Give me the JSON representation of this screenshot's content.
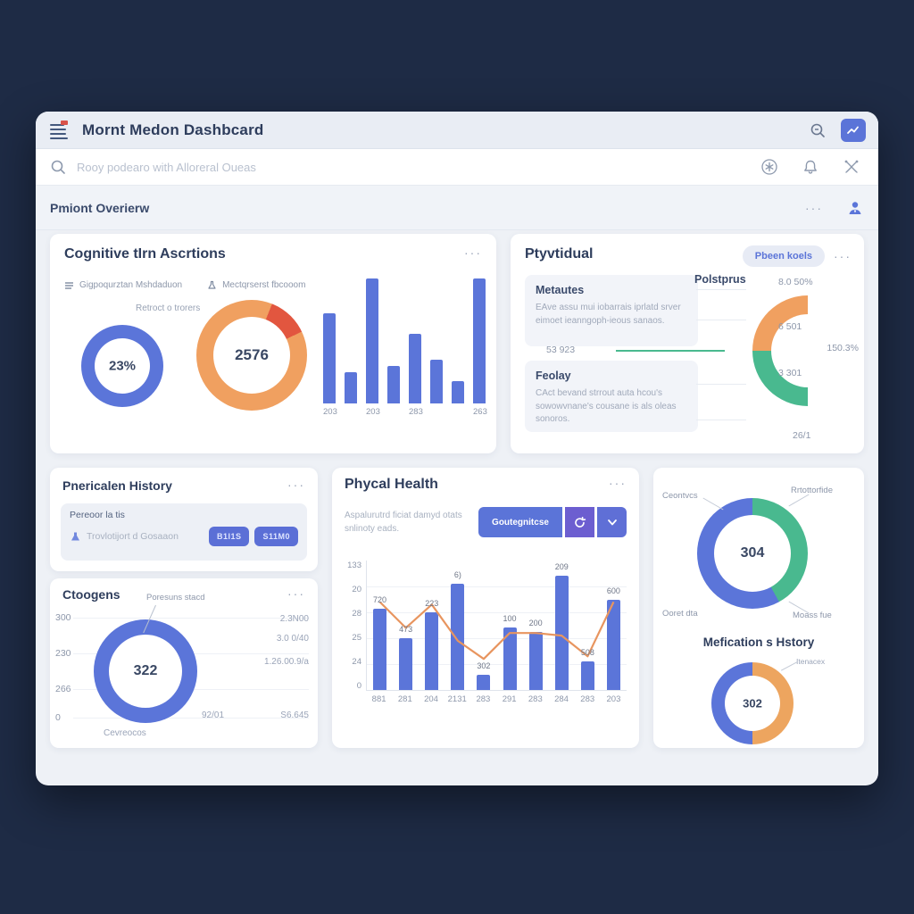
{
  "ui": {
    "ellipsis": "···"
  },
  "header": {
    "title": "Mornt Medon Dashbcard"
  },
  "search": {
    "placeholder": "Rooy podearo with Alloreral Oueas"
  },
  "overview": {
    "title": "Pmiont Overierw"
  },
  "cognitive": {
    "title": "Cognitive tIrn Ascrtions",
    "legend1": "Gigpoqurztan Mshdaduon",
    "legend2": "Mectqrserst fbcooom",
    "sublabel": "Retroct o trorers"
  },
  "vitals": {
    "title": "Ptyvtidual",
    "pill": "Pbeen koels",
    "box1_title": "Metautes",
    "box1_text": "EAve assu mui iobarrais iprlatd srver eimoet ieanngoph-ieous sanaos.",
    "box2_title": "Feolay",
    "box2_text": "CAct bevand strrout auta hcou's sowowvnane's cousane is als oleas sonoros.",
    "gauge_title": "Polstprus"
  },
  "history": {
    "title": "Pnericalen History",
    "box_label": "Pereoor la tis",
    "row_text": "Trovlotijort d Gosaaon",
    "btn1": "B1l1S",
    "btn2": "S11M0"
  },
  "categories": {
    "title": "Ctoogens",
    "annotation": "Poresuns stacd",
    "left_ticks": [
      "300",
      "230",
      "266",
      "0"
    ],
    "right_values": [
      "2.3N00",
      "3.0 0/40",
      "1.26.00.9/a",
      "S6.645"
    ],
    "bottom_value": "92/01",
    "bottom_label": "Cevreocos"
  },
  "physical": {
    "title": "Phycal Health",
    "subtitle": "Aspalurutrd ficiat damyd otats snlinoty eads.",
    "primary_btn": "Goutegnitcse"
  },
  "right_panel": {
    "donut_labels": [
      "Ceontvcs",
      "Rrtottorfide",
      "Ooret dta",
      "Moass fue"
    ],
    "medication_title": "Mefication s Hstory",
    "medication_annotation": "Itenacex"
  },
  "colors": {
    "blue": "#5b75d9",
    "orange": "#f0a060",
    "red": "#e2563f",
    "green": "#49b98f",
    "navy_bg": "#1e2b45",
    "accent_button": "#5b74d8",
    "purple_button": "#6c5ed0"
  },
  "chart_data": [
    {
      "id": "cog-donut-1",
      "type": "pie",
      "style": "donut",
      "title": "Retroct o trorers",
      "size": 92,
      "ring": 15,
      "segments": [
        {
          "label": "filled",
          "color": "#5b75d9",
          "pct": 100
        }
      ],
      "center": "23%"
    },
    {
      "id": "cog-donut-2",
      "type": "pie",
      "style": "donut",
      "size": 124,
      "ring": 19,
      "segments": [
        {
          "label": "segment-a",
          "color": "#f0a060",
          "pct": 6
        },
        {
          "label": "segment-b",
          "color": "#e2563f",
          "pct": 12
        },
        {
          "label": "segment-c",
          "color": "#f0a060",
          "pct": 82
        }
      ],
      "center": "2576"
    },
    {
      "id": "cog-bars",
      "type": "bar",
      "bar_color": "#5b75d9",
      "values": [
        72,
        25,
        100,
        30,
        56,
        35,
        18,
        100
      ],
      "ylim": [
        0,
        100
      ],
      "x_tick_labels": [
        {
          "index": 0,
          "label": "203"
        },
        {
          "index": 2,
          "label": "203"
        },
        {
          "index": 4,
          "label": "283"
        },
        {
          "index": 7,
          "label": "263"
        }
      ]
    },
    {
      "id": "vitals-gauge",
      "type": "gauge",
      "size": 124,
      "ring": 21,
      "segments": [
        {
          "label": "empty",
          "color": "transparent",
          "pct": 50
        },
        {
          "label": "lower",
          "color": "#49b98f",
          "pct": 25
        },
        {
          "label": "upper",
          "color": "#f0a060",
          "pct": 25
        }
      ],
      "labels": {
        "top": "8.0 50%",
        "inner_upper": "6 501",
        "right": "150.3%",
        "inner_lower": "3 301",
        "bottom": "26/1",
        "left": "53 923"
      }
    },
    {
      "id": "categories-donut",
      "type": "pie",
      "style": "donut",
      "size": 116,
      "ring": 17,
      "segments": [
        {
          "label": "filled",
          "color": "#5b75d9",
          "pct": 100
        }
      ],
      "center": "322"
    },
    {
      "id": "physical-combo",
      "type": "bar",
      "subtype": "bar+line",
      "bar_color": "#5b75d9",
      "line_color": "#e8955f",
      "categories": [
        "881",
        "281",
        "204",
        "2131",
        "283",
        "291",
        "283",
        "284",
        "283",
        "203"
      ],
      "bars": [
        63,
        40,
        60,
        82,
        12,
        48,
        45,
        88,
        22,
        70
      ],
      "line": [
        68,
        48,
        66,
        38,
        24,
        44,
        44,
        42,
        26,
        68
      ],
      "bar_labels": [
        "720",
        "473",
        "223",
        "6)",
        "302",
        "100",
        "200",
        "209",
        "508",
        "600"
      ],
      "y_ticks": [
        "133",
        "20",
        "28",
        "25",
        "24",
        "0"
      ],
      "ylim": [
        0,
        100
      ],
      "grid": true
    },
    {
      "id": "right-donut",
      "type": "pie",
      "style": "donut",
      "size": 124,
      "ring": 19,
      "segments": [
        {
          "label": "Rrtottorfide",
          "color": "#49b98f",
          "pct": 42
        },
        {
          "label": "Ceontvcs",
          "color": "#5b75d9",
          "pct": 58
        }
      ],
      "center": "304"
    },
    {
      "id": "medication-donut",
      "type": "pie",
      "style": "donut",
      "size": 92,
      "ring": 15,
      "segments": [
        {
          "label": "right-half",
          "color": "#eda55f",
          "pct": 50
        },
        {
          "label": "left-half",
          "color": "#5b75d9",
          "pct": 50
        }
      ],
      "center": "302"
    }
  ]
}
